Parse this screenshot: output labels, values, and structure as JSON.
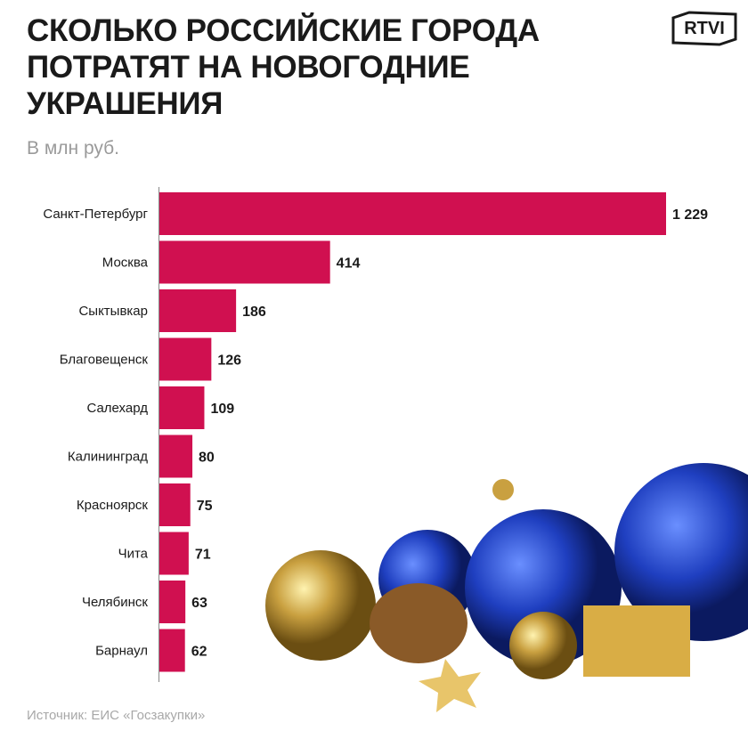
{
  "header": {
    "title": "СКОЛЬКО РОССИЙСКИЕ ГОРОДА ПОТРАТЯТ НА НОВОГОДНИЕ УКРАШЕНИЯ",
    "subtitle": "В млн руб.",
    "logo": "RTVI"
  },
  "footer": {
    "source": "Источник: ЕИС «Госзакупки»"
  },
  "colors": {
    "bar": "#D01050",
    "axis": "#888888"
  },
  "chart_data": {
    "type": "bar",
    "orientation": "horizontal",
    "title": "СКОЛЬКО РОССИЙСКИЕ ГОРОДА ПОТРАТЯТ НА НОВОГОДНИЕ УКРАШЕНИЯ",
    "ylabel": "В млн руб.",
    "categories": [
      "Санкт-Петербург",
      "Москва",
      "Сыктывкар",
      "Благовещенск",
      "Салехард",
      "Калининград",
      "Красноярск",
      "Чита",
      "Челябинск",
      "Барнаул"
    ],
    "values": [
      1229,
      414,
      186,
      126,
      109,
      80,
      75,
      71,
      63,
      62
    ],
    "value_labels": [
      "1 229",
      "414",
      "186",
      "126",
      "109",
      "80",
      "75",
      "71",
      "63",
      "62"
    ],
    "xlim": [
      0,
      1229
    ],
    "grid": false
  }
}
